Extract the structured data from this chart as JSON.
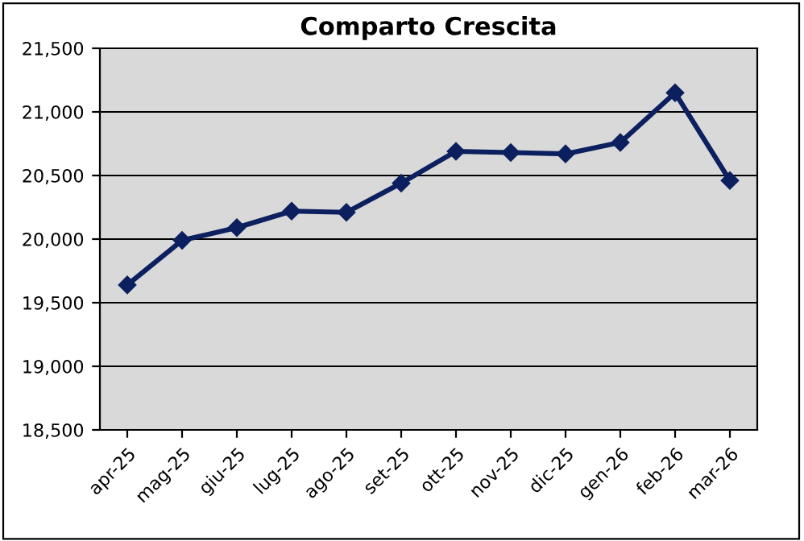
{
  "chart_data": {
    "type": "line",
    "title": "Comparto Crescita",
    "categories": [
      "apr-25",
      "mag-25",
      "giu-25",
      "lug-25",
      "ago-25",
      "set-25",
      "ott-25",
      "nov-25",
      "dic-25",
      "gen-26",
      "feb-26",
      "mar-26"
    ],
    "series": [
      {
        "color": "#0c1f5e",
        "values": [
          19640,
          19990,
          20090,
          20220,
          20210,
          20440,
          20690,
          20680,
          20670,
          20760,
          21150,
          20460
        ]
      }
    ],
    "ylim": [
      18500,
      21500
    ],
    "yticks": [
      {
        "value": 18500,
        "label": "18,500"
      },
      {
        "value": 19000,
        "label": "19,000"
      },
      {
        "value": 19500,
        "label": "19,500"
      },
      {
        "value": 20000,
        "label": "20,000"
      },
      {
        "value": 20500,
        "label": "20,500"
      },
      {
        "value": 21000,
        "label": "21,000"
      },
      {
        "value": 21500,
        "label": "21,500"
      }
    ],
    "grid": "y",
    "marker": "diamond",
    "line_style": "solid",
    "legend": false
  }
}
